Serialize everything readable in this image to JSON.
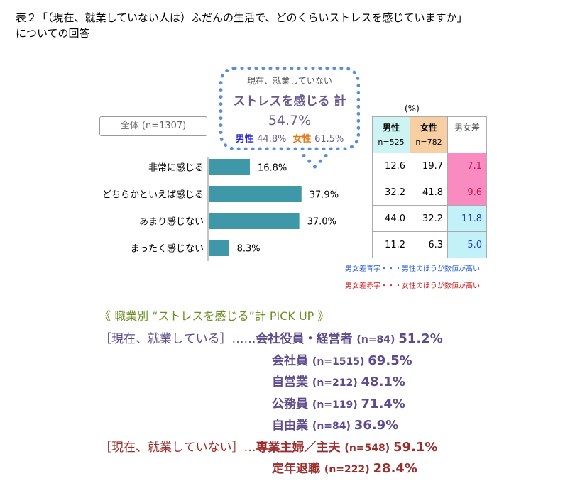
{
  "title": {
    "line1": "表２「（現在、就業していない人は）ふだんの生活で、どのくらいストレスを感じていますか」",
    "line2": "についての回答"
  },
  "total_label": "全体 (n=1307)",
  "callout": {
    "line1": "現在、就業していない",
    "line2": "ストレスを感じる 計",
    "value": "54.7%",
    "male_label": "男性",
    "male_value": "44.8%",
    "female_label": "女性",
    "female_value": "61.5%"
  },
  "chart_data": {
    "type": "bar",
    "categories": [
      "非常に感じる",
      "どちらかといえば感じる",
      "あまり感じない",
      "まったく感じない"
    ],
    "values": [
      16.8,
      37.9,
      37.0,
      8.3
    ],
    "value_labels": [
      "16.8%",
      "37.9%",
      "37.0%",
      "8.3%"
    ],
    "color": "#3e98a8"
  },
  "table": {
    "unit": "(%)",
    "headers": [
      {
        "label": "男性",
        "sub": "n=525",
        "bg": "#cdf3f3"
      },
      {
        "label": "女性",
        "sub": "n=782",
        "bg": "#f8cfa3"
      },
      {
        "label": "男女差",
        "sub": "",
        "bg": "#ffffff"
      }
    ],
    "rows": [
      {
        "male": "12.6",
        "female": "19.7",
        "diff": "7.1",
        "diff_color": "#c8174a",
        "diff_bg": "#f98bc1"
      },
      {
        "male": "32.2",
        "female": "41.8",
        "diff": "9.6",
        "diff_color": "#c8174a",
        "diff_bg": "#f98bc1"
      },
      {
        "male": "44.0",
        "female": "32.2",
        "diff": "11.8",
        "diff_color": "#1d3fc7",
        "diff_bg": "#c3f1f9"
      },
      {
        "male": "11.2",
        "female": "6.3",
        "diff": "5.0",
        "diff_color": "#1d3fc7",
        "diff_bg": "#c3f1f9"
      }
    ],
    "legend_blue": "男女差青字・・・男性のほうが数値が高い",
    "legend_red": "男女差赤字・・・女性のほうが数値が高い",
    "legend_blue_color": "#2a5fd8",
    "legend_red_color": "#d11a1a"
  },
  "pickup": {
    "title": "《 職業別 “ストレスを感じる”計 PICK UP 》",
    "employed_label": "［現在、就業している］……",
    "unemployed_label": "［現在、就業していない］…",
    "employed": [
      {
        "name": "会社役員・経営者",
        "n": "(n=84)",
        "value": "51.2%"
      },
      {
        "name": "会社員",
        "n": "(n=1515)",
        "value": "69.5%"
      },
      {
        "name": "自営業",
        "n": "(n=212)",
        "value": "48.1%"
      },
      {
        "name": "公務員",
        "n": "(n=119)",
        "value": "71.4%"
      },
      {
        "name": "自由業",
        "n": "(n=84)",
        "value": "36.9%"
      }
    ],
    "unemployed": [
      {
        "name": "専業主婦／主夫",
        "n": "(n=548)",
        "value": "59.1%"
      },
      {
        "name": "定年退職",
        "n": "(n=222)",
        "value": "28.4%"
      }
    ]
  }
}
